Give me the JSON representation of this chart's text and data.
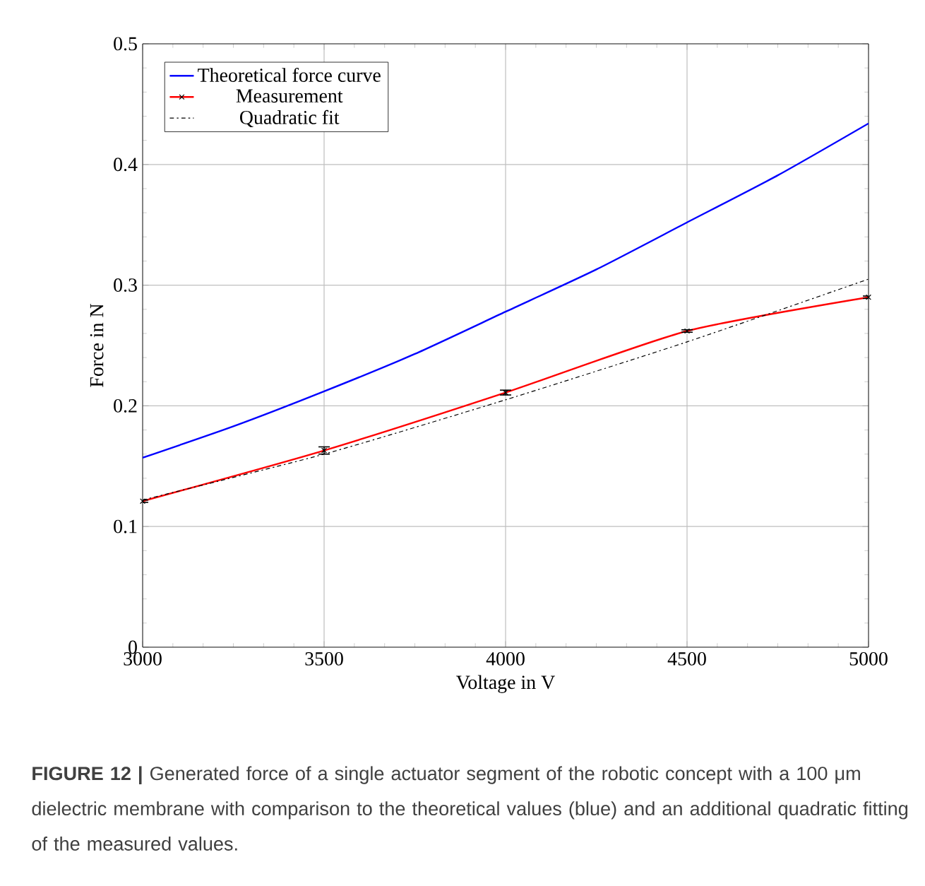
{
  "chart_data": {
    "type": "line",
    "xlabel": "Voltage in V",
    "ylabel": "Force in N",
    "xlim": [
      3000,
      5000
    ],
    "ylim": [
      0,
      0.5
    ],
    "xticks": [
      3000,
      3500,
      4000,
      4500,
      5000
    ],
    "yticks": [
      0,
      0.1,
      0.2,
      0.3,
      0.4,
      0.5
    ],
    "grid": true,
    "legend": "top left",
    "series": [
      {
        "name": "Theoretical force curve",
        "color": "#0000ff",
        "x": [
          3000,
          3250,
          3500,
          3750,
          4000,
          4250,
          4500,
          4750,
          5000
        ],
        "values": [
          0.157,
          0.183,
          0.212,
          0.243,
          0.278,
          0.313,
          0.352,
          0.391,
          0.434
        ]
      },
      {
        "name": "Measurement",
        "color": "#ff0000",
        "marker": "cross",
        "x": [
          3000,
          3500,
          4000,
          4500,
          5000
        ],
        "values": [
          0.121,
          0.163,
          0.211,
          0.262,
          0.29
        ],
        "errors": [
          0.001,
          0.003,
          0.002,
          0.001,
          0.001
        ]
      },
      {
        "name": "Quadratic fit",
        "color": "#000000",
        "line_style": "dashdot",
        "x": [
          3000,
          3500,
          4000,
          4500,
          5000
        ],
        "values": [
          0.122,
          0.16,
          0.205,
          0.253,
          0.305
        ]
      }
    ],
    "annotations": [
      "**FIGURE 12 |** Generated force of a single actuator segment of the robotic concept with a 100 μm dielectric membrane with comparison to the theoretical values (blue) and an additional quadratic fitting of the measured values."
    ]
  }
}
